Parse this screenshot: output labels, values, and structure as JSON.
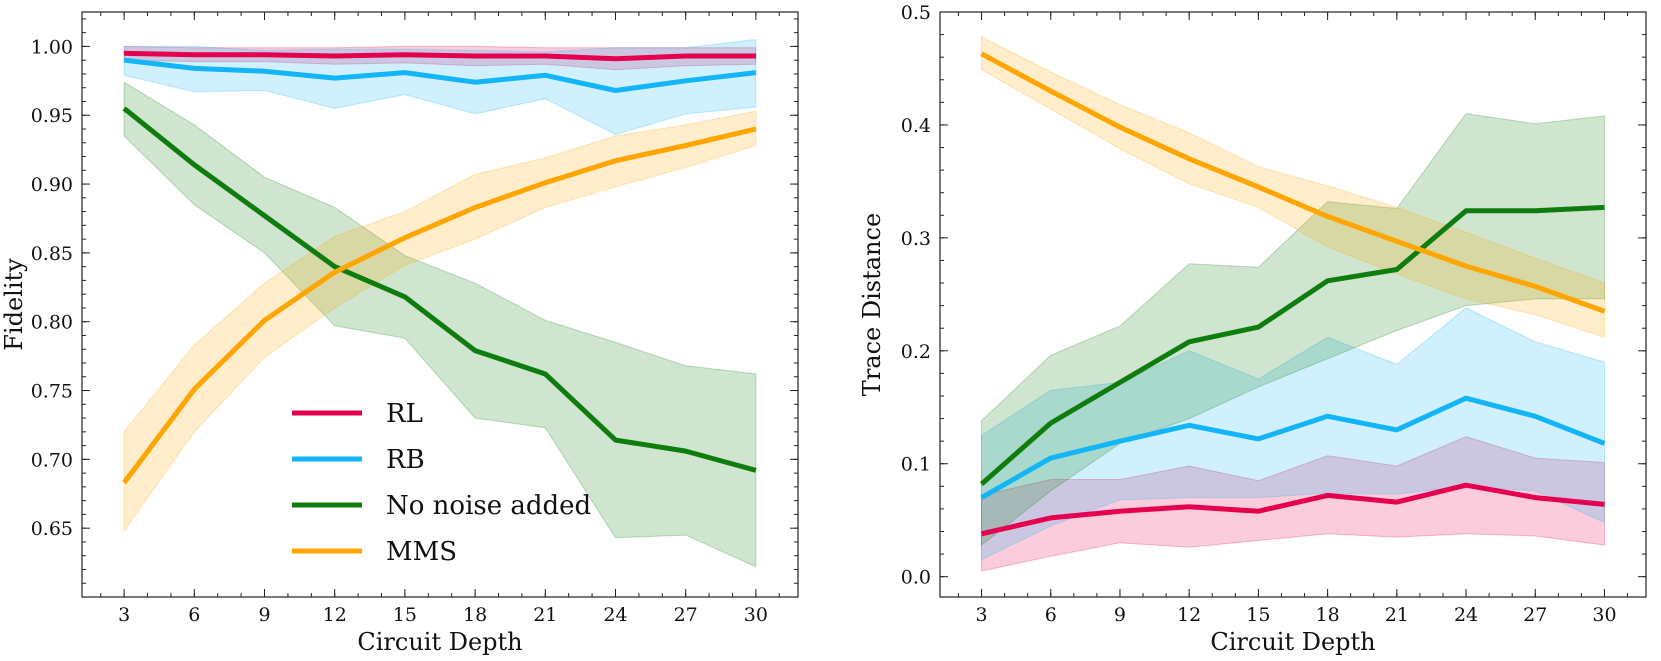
{
  "chart_data": [
    {
      "type": "line",
      "title": "",
      "xlabel": "Circuit Depth",
      "ylabel": "Fidelity",
      "x": [
        3,
        6,
        9,
        12,
        15,
        18,
        21,
        24,
        27,
        30
      ],
      "xlim": [
        1.2,
        31.8
      ],
      "ylim": [
        0.6,
        1.025
      ],
      "xticks": [
        3,
        6,
        9,
        12,
        15,
        18,
        21,
        24,
        27,
        30
      ],
      "yticks": [
        0.65,
        0.7,
        0.75,
        0.8,
        0.85,
        0.9,
        0.95,
        1.0
      ],
      "ytick_labels": [
        "0.65",
        "0.70",
        "0.75",
        "0.80",
        "0.85",
        "0.90",
        "0.95",
        "1.00"
      ],
      "legend": "lower-left",
      "series": [
        {
          "name": "RL",
          "color": "#e5004f",
          "values": [
            0.995,
            0.994,
            0.994,
            0.993,
            0.994,
            0.993,
            0.993,
            0.991,
            0.993,
            0.993
          ],
          "lower": [
            0.99,
            0.989,
            0.989,
            0.987,
            0.988,
            0.986,
            0.987,
            0.983,
            0.986,
            0.987
          ],
          "upper": [
            1.0,
            0.999,
            0.999,
            0.999,
            1.0,
            1.0,
            0.999,
            0.999,
            0.999,
            0.999
          ]
        },
        {
          "name": "RB",
          "color": "#13b5f7",
          "values": [
            0.99,
            0.984,
            0.982,
            0.977,
            0.981,
            0.974,
            0.979,
            0.968,
            0.975,
            0.981
          ],
          "lower": [
            0.979,
            0.967,
            0.968,
            0.955,
            0.965,
            0.951,
            0.962,
            0.936,
            0.951,
            0.956
          ],
          "upper": [
            1.0,
            1.0,
            0.997,
            0.998,
            0.998,
            0.997,
            0.996,
            0.999,
            0.999,
            1.005
          ]
        },
        {
          "name": "No noise added",
          "color": "#0e7d0e",
          "values": [
            0.955,
            0.914,
            0.877,
            0.84,
            0.818,
            0.779,
            0.762,
            0.714,
            0.706,
            0.692
          ],
          "lower": [
            0.935,
            0.885,
            0.85,
            0.797,
            0.788,
            0.73,
            0.723,
            0.643,
            0.645,
            0.622
          ],
          "upper": [
            0.974,
            0.943,
            0.905,
            0.883,
            0.848,
            0.828,
            0.801,
            0.785,
            0.768,
            0.762
          ]
        },
        {
          "name": "MMS",
          "color": "#ffa500",
          "values": [
            0.683,
            0.751,
            0.801,
            0.836,
            0.861,
            0.883,
            0.901,
            0.917,
            0.928,
            0.94
          ],
          "lower": [
            0.648,
            0.72,
            0.774,
            0.81,
            0.841,
            0.86,
            0.883,
            0.898,
            0.912,
            0.928
          ],
          "upper": [
            0.72,
            0.783,
            0.828,
            0.862,
            0.88,
            0.907,
            0.919,
            0.935,
            0.943,
            0.953
          ]
        }
      ]
    },
    {
      "type": "line",
      "title": "",
      "xlabel": "Circuit Depth",
      "ylabel": "Trace Distance",
      "x": [
        3,
        6,
        9,
        12,
        15,
        18,
        21,
        24,
        27,
        30
      ],
      "xlim": [
        1.2,
        31.8
      ],
      "ylim": [
        -0.018,
        0.5
      ],
      "xticks": [
        3,
        6,
        9,
        12,
        15,
        18,
        21,
        24,
        27,
        30
      ],
      "yticks": [
        0.0,
        0.1,
        0.2,
        0.3,
        0.4,
        0.5
      ],
      "ytick_labels": [
        "0.0",
        "0.1",
        "0.2",
        "0.3",
        "0.4",
        "0.5"
      ],
      "legend": "none",
      "series": [
        {
          "name": "RL",
          "color": "#e5004f",
          "values": [
            0.038,
            0.052,
            0.058,
            0.062,
            0.058,
            0.072,
            0.066,
            0.081,
            0.07,
            0.064
          ],
          "lower": [
            0.005,
            0.018,
            0.03,
            0.026,
            0.032,
            0.038,
            0.035,
            0.038,
            0.036,
            0.028
          ],
          "upper": [
            0.072,
            0.086,
            0.086,
            0.098,
            0.085,
            0.107,
            0.098,
            0.124,
            0.105,
            0.101
          ]
        },
        {
          "name": "RB",
          "color": "#13b5f7",
          "values": [
            0.07,
            0.105,
            0.12,
            0.134,
            0.122,
            0.142,
            0.13,
            0.158,
            0.142,
            0.118
          ],
          "lower": [
            0.015,
            0.045,
            0.068,
            0.07,
            0.07,
            0.074,
            0.073,
            0.08,
            0.076,
            0.048
          ],
          "upper": [
            0.125,
            0.165,
            0.172,
            0.2,
            0.175,
            0.212,
            0.188,
            0.238,
            0.208,
            0.19
          ]
        },
        {
          "name": "No noise added",
          "color": "#0e7d0e",
          "values": [
            0.082,
            0.136,
            0.172,
            0.208,
            0.221,
            0.262,
            0.272,
            0.324,
            0.324,
            0.327
          ],
          "lower": [
            0.028,
            0.076,
            0.118,
            0.14,
            0.168,
            0.193,
            0.218,
            0.24,
            0.246,
            0.246
          ],
          "upper": [
            0.138,
            0.196,
            0.222,
            0.277,
            0.274,
            0.332,
            0.326,
            0.41,
            0.401,
            0.408
          ]
        },
        {
          "name": "MMS",
          "color": "#ffa500",
          "values": [
            0.463,
            0.43,
            0.398,
            0.37,
            0.345,
            0.319,
            0.297,
            0.275,
            0.257,
            0.235
          ],
          "lower": [
            0.449,
            0.414,
            0.379,
            0.348,
            0.327,
            0.292,
            0.268,
            0.246,
            0.232,
            0.212
          ],
          "upper": [
            0.478,
            0.447,
            0.418,
            0.393,
            0.363,
            0.346,
            0.327,
            0.305,
            0.282,
            0.26
          ]
        }
      ]
    }
  ]
}
